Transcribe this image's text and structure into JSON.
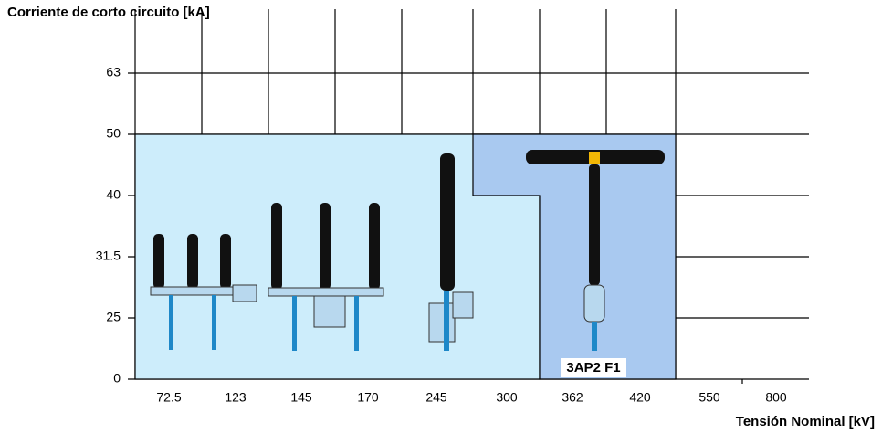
{
  "header": {
    "title": "Corriente de corto circuito [kA]"
  },
  "y_axis": {
    "labels": [
      "63",
      "50",
      "40",
      "31.5",
      "25",
      "0"
    ]
  },
  "x_axis": {
    "labels": [
      "72.5",
      "123",
      "145",
      "170",
      "245",
      "300",
      "362",
      "420",
      "550",
      "800"
    ],
    "title": "Tensión Nominal [kV]"
  },
  "product": {
    "label": "3AP2 F1"
  }
}
